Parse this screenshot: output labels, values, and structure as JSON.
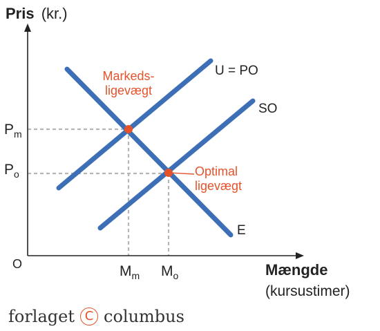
{
  "axes": {
    "y_label_bold": "Pris",
    "y_label_unit": "(kr.)",
    "x_label_bold": "Mængde",
    "x_label_unit": "(kursustimer)",
    "origin": "O"
  },
  "ticks": {
    "pm": {
      "letter": "P",
      "sub": "m"
    },
    "po": {
      "letter": "P",
      "sub": "o"
    },
    "mm": {
      "letter": "M",
      "sub": "m"
    },
    "mo": {
      "letter": "M",
      "sub": "o"
    }
  },
  "curves": {
    "u_po": "U = PO",
    "so": "SO",
    "e": "E"
  },
  "annotations": {
    "market_line1": "Markeds-",
    "market_line2": "ligevægt",
    "optimal_line1": "Optimal",
    "optimal_line2": "ligevægt"
  },
  "colors": {
    "curve": "#3d6fb6",
    "point": "#e5532b",
    "axis": "#222222",
    "dashed": "#b5b5b5"
  },
  "footer": {
    "left": "forlaget",
    "symbol": "C",
    "right": "columbus"
  }
}
